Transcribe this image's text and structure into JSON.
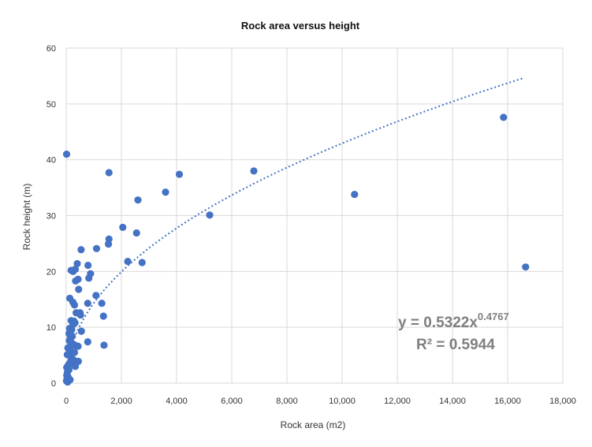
{
  "chart_data": {
    "type": "scatter",
    "title": "Rock area versus height",
    "xlabel": "Rock area (m2)",
    "ylabel": "Rock height (m)",
    "xlim": [
      0,
      18000
    ],
    "ylim": [
      0,
      60
    ],
    "x_ticks": [
      "0",
      "2,000",
      "4,000",
      "6,000",
      "8,000",
      "10,000",
      "12,000",
      "14,000",
      "16,000",
      "18,000"
    ],
    "y_ticks": [
      "0",
      "10",
      "20",
      "30",
      "40",
      "50",
      "60"
    ],
    "grid": true,
    "marker_color": "#4472c4",
    "trendline_color": "#4472c4",
    "series": [
      {
        "points": [
          [
            15,
            41.0
          ],
          [
            1550,
            37.7
          ],
          [
            4100,
            37.4
          ],
          [
            6800,
            38.0
          ],
          [
            3600,
            34.2
          ],
          [
            2600,
            32.8
          ],
          [
            10450,
            33.8
          ],
          [
            15850,
            47.6
          ],
          [
            16650,
            20.8
          ],
          [
            5200,
            30.1
          ],
          [
            2050,
            27.9
          ],
          [
            2550,
            26.9
          ],
          [
            1550,
            25.8
          ],
          [
            1530,
            24.9
          ],
          [
            1100,
            24.1
          ],
          [
            540,
            23.9
          ],
          [
            2230,
            21.8
          ],
          [
            2750,
            21.6
          ],
          [
            400,
            21.4
          ],
          [
            790,
            21.1
          ],
          [
            330,
            20.4
          ],
          [
            180,
            20.2
          ],
          [
            250,
            20.0
          ],
          [
            880,
            19.6
          ],
          [
            820,
            18.8
          ],
          [
            430,
            18.6
          ],
          [
            340,
            18.3
          ],
          [
            450,
            16.8
          ],
          [
            1080,
            15.7
          ],
          [
            130,
            15.2
          ],
          [
            240,
            14.5
          ],
          [
            300,
            14.0
          ],
          [
            780,
            14.3
          ],
          [
            1290,
            14.3
          ],
          [
            360,
            12.6
          ],
          [
            500,
            12.6
          ],
          [
            520,
            12.2
          ],
          [
            1350,
            12.0
          ],
          [
            280,
            11.1
          ],
          [
            180,
            11.2
          ],
          [
            250,
            10.5
          ],
          [
            320,
            10.8
          ],
          [
            120,
            9.8
          ],
          [
            200,
            9.6
          ],
          [
            100,
            8.9
          ],
          [
            550,
            9.3
          ],
          [
            150,
            8.2
          ],
          [
            220,
            8.4
          ],
          [
            780,
            7.4
          ],
          [
            1370,
            6.8
          ],
          [
            200,
            7.2
          ],
          [
            280,
            6.9
          ],
          [
            360,
            6.7
          ],
          [
            430,
            6.6
          ],
          [
            60,
            6.3
          ],
          [
            140,
            6.1
          ],
          [
            90,
            5.2
          ],
          [
            180,
            4.5
          ],
          [
            40,
            5.1
          ],
          [
            260,
            4.2
          ],
          [
            440,
            3.9
          ],
          [
            130,
            3.6
          ],
          [
            60,
            3.1
          ],
          [
            330,
            3.0
          ],
          [
            20,
            2.8
          ],
          [
            100,
            2.4
          ],
          [
            40,
            1.9
          ],
          [
            20,
            1.4
          ],
          [
            70,
            1.1
          ],
          [
            30,
            0.8
          ],
          [
            140,
            0.6
          ],
          [
            10,
            0.4
          ],
          [
            50,
            0.2
          ],
          [
            90,
            3.3
          ],
          [
            220,
            3.8
          ],
          [
            300,
            5.5
          ],
          [
            170,
            6.8
          ],
          [
            110,
            7.6
          ]
        ]
      }
    ],
    "trendline": {
      "type": "power",
      "a": 0.5322,
      "b": 0.4767,
      "x_range": [
        1,
        16600
      ],
      "equation_text": "y = 0.5322x",
      "equation_exponent": "0.4767",
      "r2_text": "R² = 0.5944"
    }
  }
}
